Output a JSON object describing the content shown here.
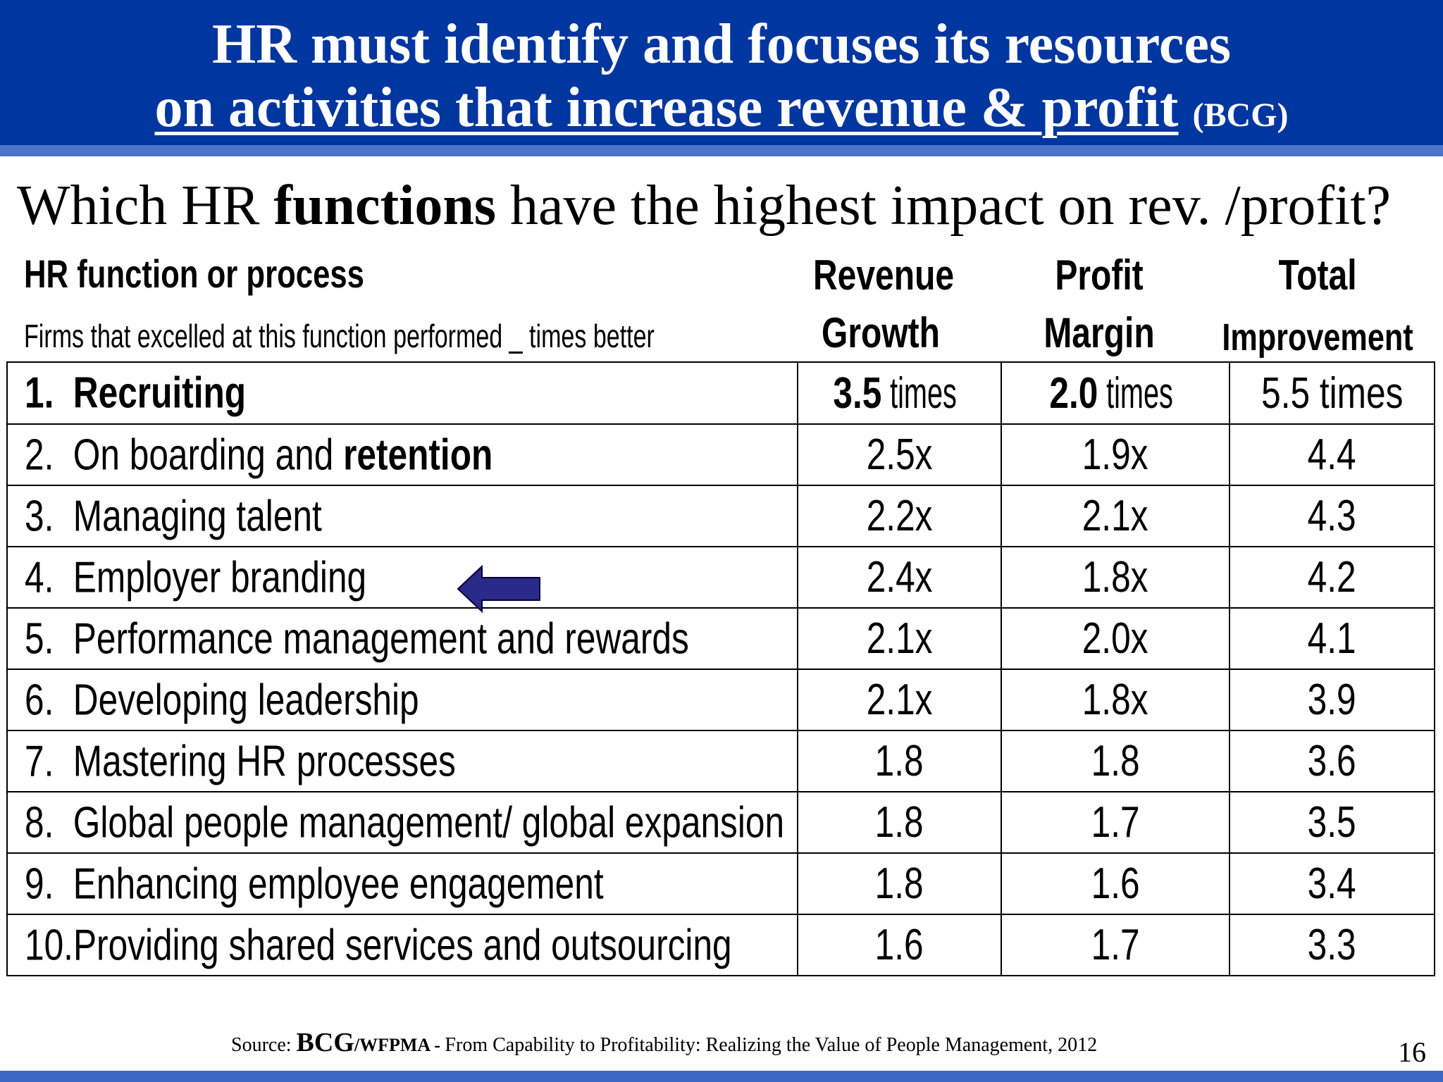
{
  "header": {
    "line1": "HR must identify and focuses its resources",
    "line2": "on activities that increase revenue & profit",
    "tag": "(BCG)"
  },
  "question": {
    "pre": "Which HR ",
    "bold": "functions",
    "post": " have the highest impact on rev. /profit?"
  },
  "table": {
    "function_header": "HR function or process",
    "function_subheader": "Firms that excelled at this function performed _ times better",
    "columns": [
      {
        "line1": "Revenue",
        "line2": "Growth"
      },
      {
        "line1": "Profit",
        "line2": "Margin"
      },
      {
        "line1": "Total",
        "line2": "Improvement"
      }
    ],
    "rows": [
      {
        "num": "1.",
        "label": "Recruiting",
        "label_bold": "",
        "rev_bold": "3.5",
        "rev": " times",
        "profit_bold": "2.0",
        "profit": " times",
        "total": "5.5 times"
      },
      {
        "num": "2.",
        "label": "On boarding and ",
        "label_bold": "retention",
        "rev": "2.5x",
        "profit": "1.9x",
        "total": "4.4"
      },
      {
        "num": "3.",
        "label": "Managing  talent",
        "label_bold": "",
        "rev": "2.2x",
        "profit": "2.1x",
        "total": "4.3"
      },
      {
        "num": "4.",
        "label": "Employer branding",
        "label_bold": "",
        "rev": "2.4x",
        "profit": "1.8x",
        "total": "4.2"
      },
      {
        "num": "5.",
        "label": "Performance management  and rewards",
        "label_bold": "",
        "rev": "2.1x",
        "profit": "2.0x",
        "total": "4.1"
      },
      {
        "num": "6.",
        "label": "Developing  leadership",
        "label_bold": "",
        "rev": "2.1x",
        "profit": "1.8x",
        "total": "3.9"
      },
      {
        "num": "7.",
        "label": "Mastering HR processes",
        "label_bold": "",
        "rev": "1.8",
        "profit": "1.8",
        "total": "3.6"
      },
      {
        "num": "8.",
        "label": "Global people management/  global expansion",
        "label_bold": "",
        "rev": "1.8",
        "profit": "1.7",
        "total": "3.5"
      },
      {
        "num": "9.",
        "label": "Enhancing  employee  engagement",
        "label_bold": "",
        "rev": "1.8",
        "profit": "1.6",
        "total": "3.4"
      },
      {
        "num": "10.",
        "label": "Providing shared services  and outsourcing",
        "label_bold": "",
        "rev": "1.6",
        "profit": "1.7",
        "total": "3.3"
      }
    ]
  },
  "arrow": {
    "icon": "left-arrow-icon",
    "color": "#2a2a8a"
  },
  "source": {
    "prefix": "Source: ",
    "bcg": "BCG",
    "wf": "/WFPMA - ",
    "text": "From Capability to Profitability: Realizing the Value of People Management, 2012"
  },
  "page_number": "16",
  "colors": {
    "header_bg": "#0036a0",
    "stripe": "#4a74c8"
  }
}
